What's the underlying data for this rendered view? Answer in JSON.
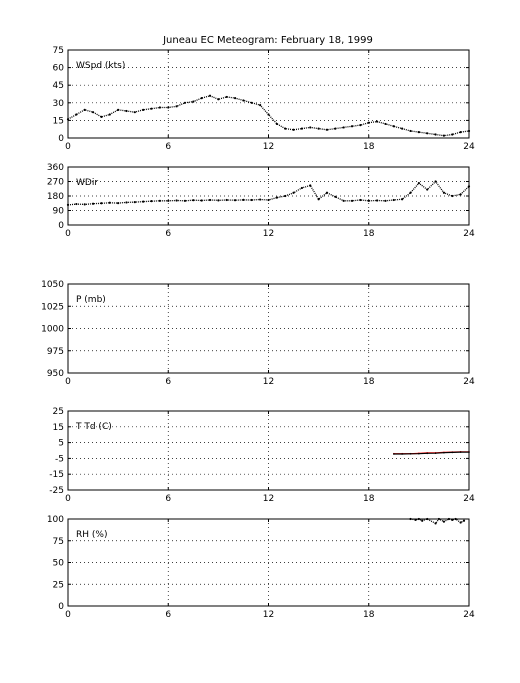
{
  "figure": {
    "title": "Juneau EC Meteogram:  February 18, 1999"
  },
  "chart_data": [
    {
      "type": "scatter",
      "panel_label": "WSpd (kts)",
      "xlim": [
        0,
        24
      ],
      "ylim": [
        0,
        75
      ],
      "x_ticks": [
        0,
        6,
        12,
        18,
        24
      ],
      "y_ticks": [
        0,
        15,
        30,
        45,
        60,
        75
      ],
      "grid": true,
      "series": [
        {
          "color": "#000000",
          "x": [
            0,
            0.5,
            1,
            1.5,
            2,
            2.5,
            3,
            3.5,
            4,
            4.5,
            5,
            5.5,
            6,
            6.5,
            7,
            7.5,
            8,
            8.5,
            9,
            9.5,
            10,
            10.5,
            11,
            11.5,
            12,
            12.5,
            13,
            13.5,
            14,
            14.5,
            15,
            15.5,
            16,
            16.5,
            17,
            17.5,
            18,
            18.5,
            19,
            19.5,
            20,
            20.5,
            21,
            21.5,
            22,
            22.5,
            23,
            23.5,
            24
          ],
          "y": [
            16,
            20,
            24,
            22,
            18,
            20,
            24,
            23,
            22,
            24,
            25,
            26,
            26,
            27,
            30,
            31,
            34,
            36,
            33,
            35,
            34,
            32,
            30,
            28,
            20,
            12,
            8,
            7,
            8,
            9,
            8,
            7,
            8,
            9,
            10,
            11,
            13,
            14,
            12,
            10,
            8,
            6,
            5,
            4,
            3,
            2,
            3,
            5,
            6
          ]
        }
      ]
    },
    {
      "type": "scatter",
      "panel_label": "WDir",
      "xlim": [
        0,
        24
      ],
      "ylim": [
        0,
        360
      ],
      "x_ticks": [
        0,
        6,
        12,
        18,
        24
      ],
      "y_ticks": [
        0,
        90,
        180,
        270,
        360
      ],
      "grid": true,
      "series": [
        {
          "color": "#000000",
          "x": [
            0,
            0.5,
            1,
            1.5,
            2,
            2.5,
            3,
            3.5,
            4,
            4.5,
            5,
            5.5,
            6,
            6.5,
            7,
            7.5,
            8,
            8.5,
            9,
            9.5,
            10,
            10.5,
            11,
            11.5,
            12,
            12.5,
            13,
            13.5,
            14,
            14.5,
            15,
            15.5,
            16,
            16.5,
            17,
            17.5,
            18,
            18.5,
            19,
            19.5,
            20,
            20.5,
            21,
            21.5,
            22,
            22.5,
            23,
            23.5,
            24
          ],
          "y": [
            125,
            130,
            128,
            132,
            135,
            138,
            136,
            140,
            142,
            145,
            148,
            150,
            150,
            152,
            150,
            154,
            152,
            155,
            153,
            155,
            154,
            156,
            155,
            158,
            155,
            170,
            180,
            200,
            230,
            245,
            160,
            200,
            175,
            150,
            150,
            155,
            150,
            152,
            150,
            155,
            160,
            200,
            260,
            220,
            270,
            200,
            180,
            190,
            240
          ]
        }
      ]
    },
    {
      "type": "line",
      "panel_label": "P (mb)",
      "xlim": [
        0,
        24
      ],
      "ylim": [
        950,
        1050
      ],
      "x_ticks": [
        0,
        6,
        12,
        18,
        24
      ],
      "y_ticks": [
        950,
        975,
        1000,
        1025,
        1050
      ],
      "grid": true,
      "series": []
    },
    {
      "type": "line",
      "panel_label": "T Td (C)",
      "xlim": [
        0,
        24
      ],
      "ylim": [
        -25,
        25
      ],
      "x_ticks": [
        0,
        6,
        12,
        18,
        24
      ],
      "y_ticks": [
        -25,
        -15,
        -5,
        5,
        15,
        25
      ],
      "grid": true,
      "series": [
        {
          "color": "#ff0000",
          "x": [
            19.5,
            20,
            20.5,
            21,
            21.5,
            22,
            22.5,
            23,
            23.5,
            24
          ],
          "y": [
            -2,
            -2,
            -2,
            -1.8,
            -1.5,
            -1.5,
            -1.2,
            -1,
            -0.8,
            -0.8
          ]
        },
        {
          "color": "#000000",
          "x": [
            19.5,
            20,
            20.5,
            21,
            21.5,
            22,
            22.5,
            23,
            23.5,
            24
          ],
          "y": [
            -2.2,
            -2.2,
            -2.1,
            -2,
            -1.8,
            -1.7,
            -1.4,
            -1.2,
            -1,
            -1
          ]
        }
      ]
    },
    {
      "type": "scatter",
      "panel_label": "RH (%)",
      "xlim": [
        0,
        24
      ],
      "ylim": [
        0,
        100
      ],
      "x_ticks": [
        0,
        6,
        12,
        18,
        24
      ],
      "y_ticks": [
        0,
        25,
        50,
        75,
        100
      ],
      "grid": true,
      "series": [
        {
          "color": "#000000",
          "x": [
            20.5,
            20.8,
            21,
            21.2,
            21.5,
            22,
            22.2,
            22.5,
            22.8,
            23,
            23.2,
            23.5,
            23.7
          ],
          "y": [
            100,
            99,
            100,
            98,
            100,
            95,
            100,
            97,
            100,
            99,
            100,
            96,
            98
          ]
        }
      ]
    }
  ]
}
